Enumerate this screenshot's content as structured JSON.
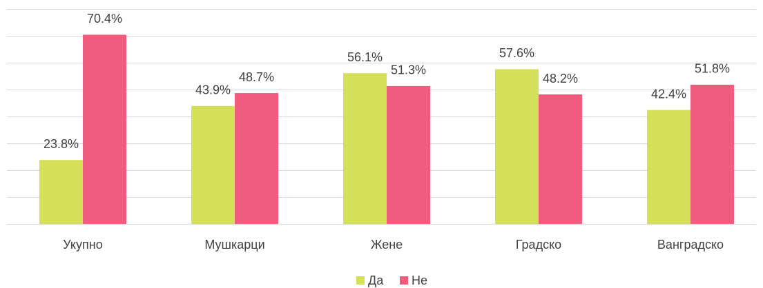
{
  "chart_data": {
    "type": "bar",
    "categories": [
      "Укупно",
      "Мушкарци",
      "Жене",
      "Градско",
      "Ванградско"
    ],
    "series": [
      {
        "name": "Да",
        "color": "#d4df5a",
        "values": [
          23.8,
          43.9,
          56.1,
          57.6,
          42.4
        ],
        "value_labels": [
          "23.8%",
          "43.9%",
          "56.1%",
          "57.6%",
          "42.4%"
        ]
      },
      {
        "name": "Не",
        "color": "#f05b7e",
        "values": [
          70.4,
          48.7,
          51.3,
          48.2,
          51.8
        ],
        "value_labels": [
          "70.4%",
          "48.7%",
          "51.3%",
          "48.2%",
          "51.8%"
        ]
      }
    ],
    "ylim": [
      0,
      80
    ],
    "yticks": [
      0,
      10,
      20,
      30,
      40,
      50,
      60,
      70,
      80
    ],
    "grid": true,
    "legend": "bottom"
  }
}
